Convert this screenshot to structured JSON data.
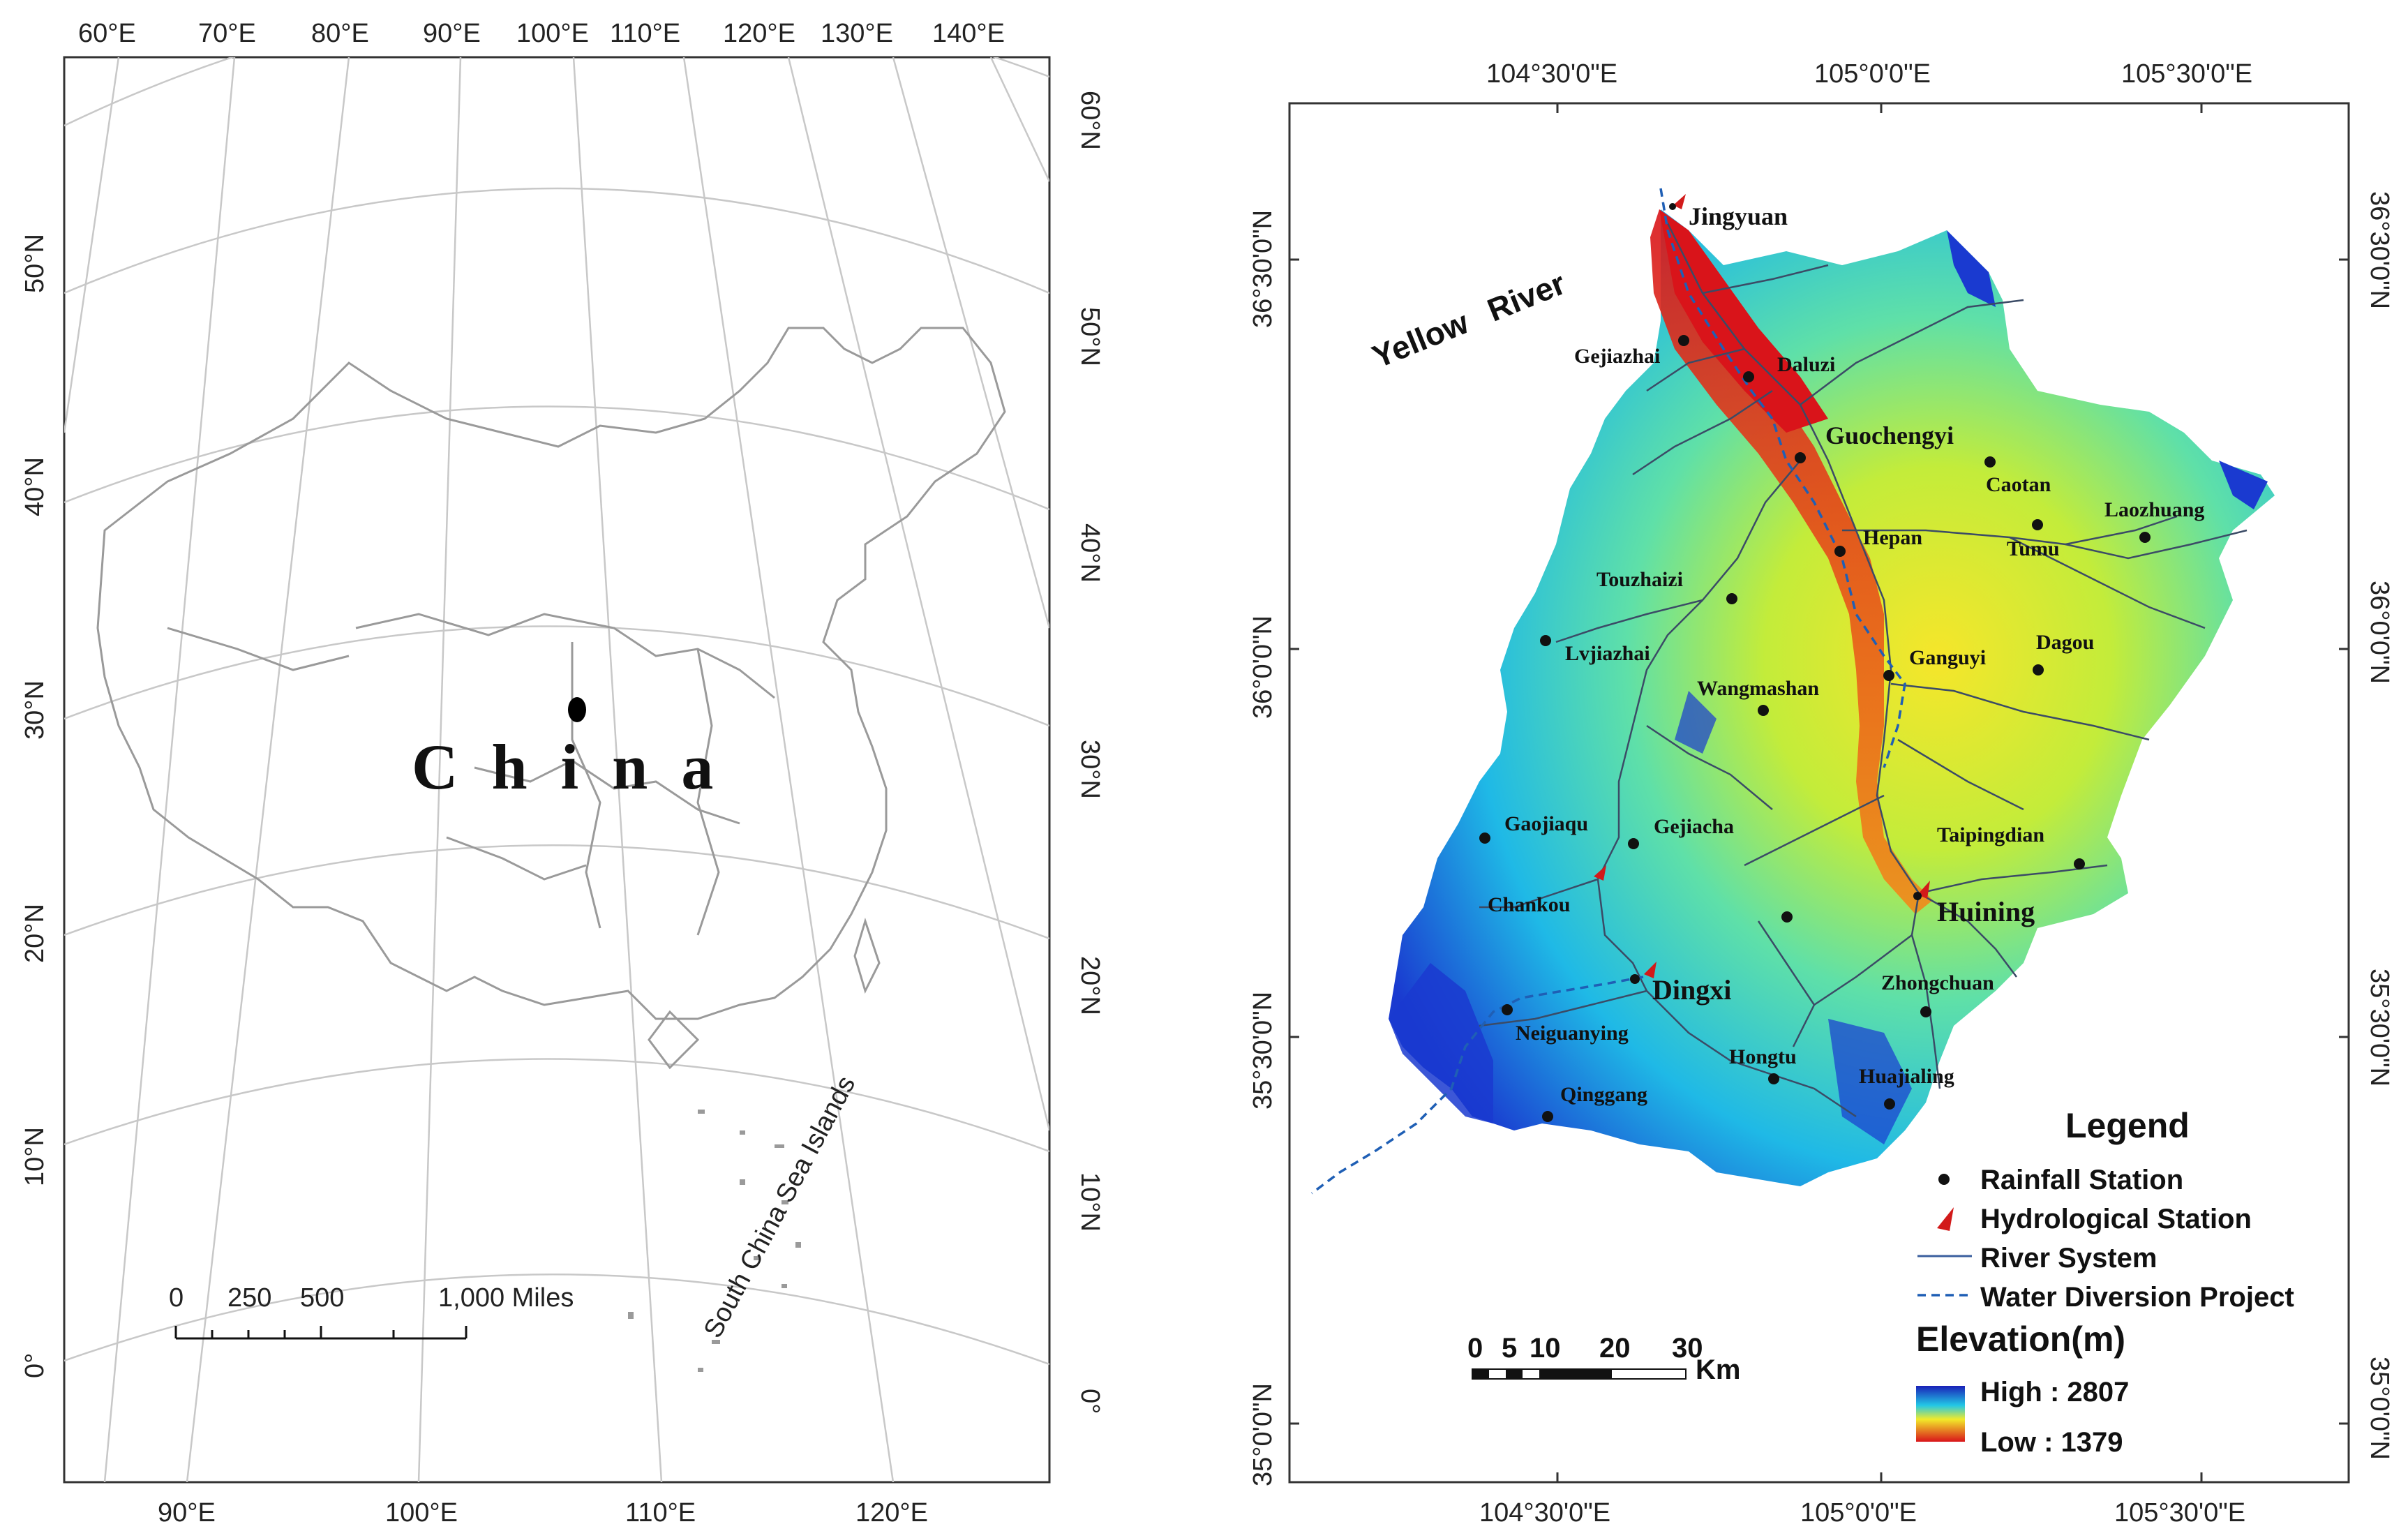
{
  "left_map": {
    "top_lon_labels": [
      "60°E",
      "70°E",
      "80°E",
      "90°E",
      "100°E",
      "110°E",
      "120°E",
      "130°E",
      "140°E"
    ],
    "bottom_lon_labels": [
      "90°E",
      "100°E",
      "110°E",
      "120°E"
    ],
    "left_lat_labels": [
      "50°N",
      "40°N",
      "30°N",
      "20°N",
      "10°N",
      "0°"
    ],
    "right_lat_labels": [
      "60°N",
      "50°N",
      "40°N",
      "30°N",
      "20°N",
      "10°N",
      "0°"
    ],
    "country_label": "China",
    "islands_label": "South China Sea Islands",
    "scale": {
      "labels": [
        "0",
        "250",
        "500",
        "1,000 Miles"
      ]
    }
  },
  "right_map": {
    "top_lon_labels": [
      "104°30'0\"E",
      "105°0'0\"E",
      "105°30'0\"E"
    ],
    "bottom_lon_labels": [
      "104°30'0\"E",
      "105°0'0\"E",
      "105°30'0\"E"
    ],
    "left_lat_labels": [
      "36°30'0\"N",
      "36°0'0\"N",
      "35°30'0\"N",
      "35°0'0\"N"
    ],
    "right_lat_labels": [
      "36°30'0\"N",
      "36°0'0\"N",
      "35°30'0\"N",
      "35°0'0\"N"
    ],
    "river_label": "Yellow River",
    "rainfall_stations": [
      "Gejiazhai",
      "Daluzi",
      "Caotan",
      "Laozhuang",
      "Tumu",
      "Hepan",
      "Touzhaizi",
      "Lvjiazhai",
      "Wangmashan",
      "Ganguyi",
      "Dagou",
      "Gaojiaqu",
      "Gejiacha",
      "Taipingdian",
      "Chankou",
      "Zhongchuan",
      "Neiguanying",
      "Hongtu",
      "Huajialing",
      "Qinggang"
    ],
    "hydrological_stations": [
      "Jingyuan",
      "Guochengyi",
      "Huining",
      "Dingxi"
    ],
    "scale": {
      "labels": [
        "0",
        "5",
        "10",
        "20",
        "30"
      ],
      "unit": "Km"
    },
    "legend": {
      "title": "Legend",
      "items": [
        "Rainfall Station",
        "Hydrological Station",
        "River System",
        "Water Diversion Project"
      ],
      "elevation_title": "Elevation(m)",
      "high_label": "High : 2807",
      "low_label": "Low : 1379"
    }
  },
  "colors": {
    "river": "#3b5f9e",
    "diversion": "#1f5fb5",
    "hydro_station": "#d21a1a",
    "elev_high": "#1a20b8",
    "elev_mid": "#f2ea2a",
    "elev_low": "#d9141a"
  }
}
